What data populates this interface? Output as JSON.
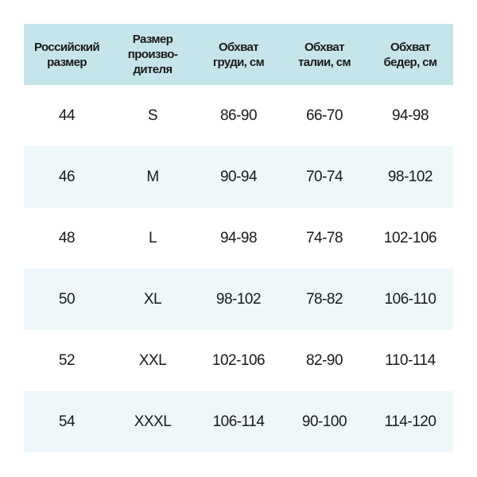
{
  "colors": {
    "header_bg": "#c5e5eb",
    "alt_row_bg": "#eef7f9"
  },
  "headers": [
    [
      "Российский",
      "размер"
    ],
    [
      "Размер",
      "произво-",
      "дителя"
    ],
    [
      "Обхват",
      "груди, см"
    ],
    [
      "Обхват",
      "талии, см"
    ],
    [
      "Обхват",
      "бедер, см"
    ]
  ],
  "rows": [
    [
      "44",
      "S",
      "86-90",
      "66-70",
      "94-98"
    ],
    [
      "46",
      "M",
      "90-94",
      "70-74",
      "98-102"
    ],
    [
      "48",
      "L",
      "94-98",
      "74-78",
      "102-106"
    ],
    [
      "50",
      "XL",
      "98-102",
      "78-82",
      "106-110"
    ],
    [
      "52",
      "XXL",
      "102-106",
      "82-90",
      "110-114"
    ],
    [
      "54",
      "XXXL",
      "106-114",
      "90-100",
      "114-120"
    ]
  ]
}
